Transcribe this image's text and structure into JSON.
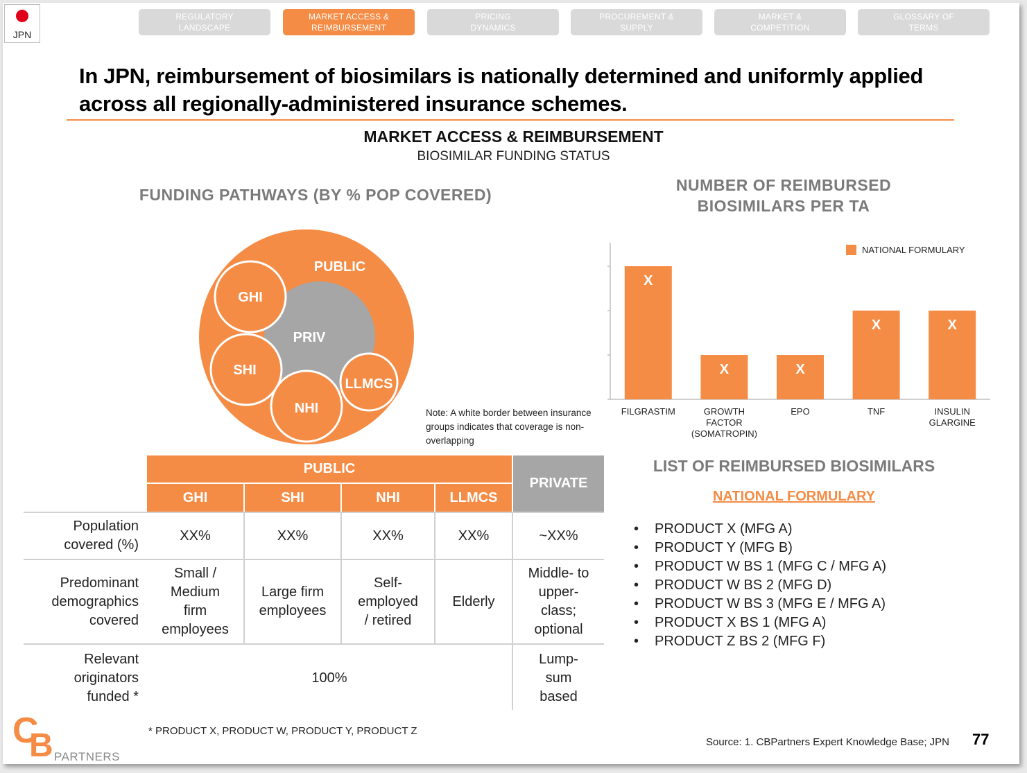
{
  "country": {
    "code": "JPN"
  },
  "nav": {
    "tabs": [
      {
        "label": "REGULATORY\nLANDSCAPE",
        "active": false
      },
      {
        "label": "MARKET ACCESS &\nREIMBURSEMENT",
        "active": true
      },
      {
        "label": "PRICING\nDYNAMICS",
        "active": false
      },
      {
        "label": "PROCUREMENT &\nSUPPLY",
        "active": false
      },
      {
        "label": "MARKET &\nCOMPETITION",
        "active": false
      },
      {
        "label": "GLOSSARY OF\nTERMS",
        "active": false
      }
    ]
  },
  "headline": "In JPN, reimbursement of biosimilars is nationally determined and uniformly applied across all regionally-administered insurance schemes.",
  "section": {
    "title": "MARKET ACCESS & REIMBURSEMENT",
    "subtitle": "BIOSIMILAR FUNDING STATUS"
  },
  "funding": {
    "title": "FUNDING PATHWAYS (BY % POP COVERED)",
    "labels": {
      "public": "PUBLIC",
      "priv": "PRIV",
      "ghi": "GHI",
      "shi": "SHI",
      "nhi": "NHI",
      "llmcs": "LLMCS"
    },
    "note": "Note: A white border between insurance groups indicates that coverage is non-overlapping"
  },
  "chart_title": "NUMBER OF REIMBURSED BIOSIMILARS PER TA",
  "chart_data": {
    "type": "bar",
    "categories": [
      "FILGRASTIM",
      "GROWTH FACTOR (SOMATROPIN)",
      "EPO",
      "TNF",
      "INSULIN GLARGINE"
    ],
    "series": [
      {
        "name": "NATIONAL FORMULARY",
        "values": [
          3,
          1,
          1,
          2,
          2
        ],
        "data_labels": [
          "X",
          "X",
          "X",
          "X",
          "X"
        ]
      }
    ],
    "ylim": [
      0,
      3
    ],
    "legend": "top-right",
    "color": "#f58c45"
  },
  "table": {
    "group_public": "PUBLIC",
    "group_private": "PRIVATE",
    "columns": [
      "GHI",
      "SHI",
      "NHI",
      "LLMCS"
    ],
    "rows": [
      {
        "label": "Population\ncovered (%)",
        "cells": [
          "XX%",
          "XX%",
          "XX%",
          "XX%"
        ],
        "private": "~XX%"
      },
      {
        "label": "Predominant\ndemographics\ncovered",
        "cells": [
          "Small /\nMedium\nfirm\nemployees",
          "Large firm\nemployees",
          "Self-\nemployed\n/ retired",
          "Elderly"
        ],
        "private": "Middle- to\nupper-\nclass;\noptional"
      },
      {
        "label": "Relevant\noriginators\nfunded *",
        "merged": "100%",
        "private": "Lump-\nsum\nbased"
      }
    ]
  },
  "list": {
    "title": "LIST OF REIMBURSED BIOSIMILARS",
    "link": "NATIONAL FORMULARY",
    "items": [
      "PRODUCT X (MFG A)",
      "PRODUCT Y (MFG B)",
      "PRODUCT W BS 1 (MFG C / MFG A)",
      "PRODUCT W BS 2 (MFG D)",
      "PRODUCT W BS 3 (MFG E / MFG A)",
      "PRODUCT X BS 1 (MFG A)",
      "PRODUCT Z BS 2 (MFG F)"
    ]
  },
  "footnote": "* PRODUCT X, PRODUCT W, PRODUCT Y, PRODUCT Z",
  "source": "Source: 1. CBPartners Expert Knowledge Base; JPN",
  "page_number": "77",
  "logo": {
    "c": "C",
    "b": "B",
    "text": "PARTNERS"
  }
}
